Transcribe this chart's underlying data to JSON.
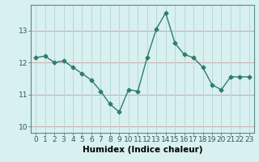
{
  "x": [
    0,
    1,
    2,
    3,
    4,
    5,
    6,
    7,
    8,
    9,
    10,
    11,
    12,
    13,
    14,
    15,
    16,
    17,
    18,
    19,
    20,
    21,
    22,
    23
  ],
  "y": [
    12.15,
    12.2,
    12.0,
    12.05,
    11.85,
    11.65,
    11.45,
    11.1,
    10.7,
    10.45,
    11.15,
    11.1,
    12.15,
    13.05,
    13.55,
    12.6,
    12.25,
    12.15,
    11.85,
    11.3,
    11.15,
    11.55,
    11.55,
    11.55
  ],
  "line_color": "#2e7d6e",
  "marker": "D",
  "marker_size": 2.5,
  "background_color": "#d8f0f0",
  "grid_color": "#b8d8d8",
  "grid_color_v": "#c8a8a8",
  "xlabel": "Humidex (Indice chaleur)",
  "xlim": [
    -0.5,
    23.5
  ],
  "ylim": [
    9.8,
    13.8
  ],
  "yticks": [
    10,
    11,
    12,
    13
  ],
  "xticks": [
    0,
    1,
    2,
    3,
    4,
    5,
    6,
    7,
    8,
    9,
    10,
    11,
    12,
    13,
    14,
    15,
    16,
    17,
    18,
    19,
    20,
    21,
    22,
    23
  ],
  "tick_fontsize": 6.5,
  "label_fontsize": 7.5
}
